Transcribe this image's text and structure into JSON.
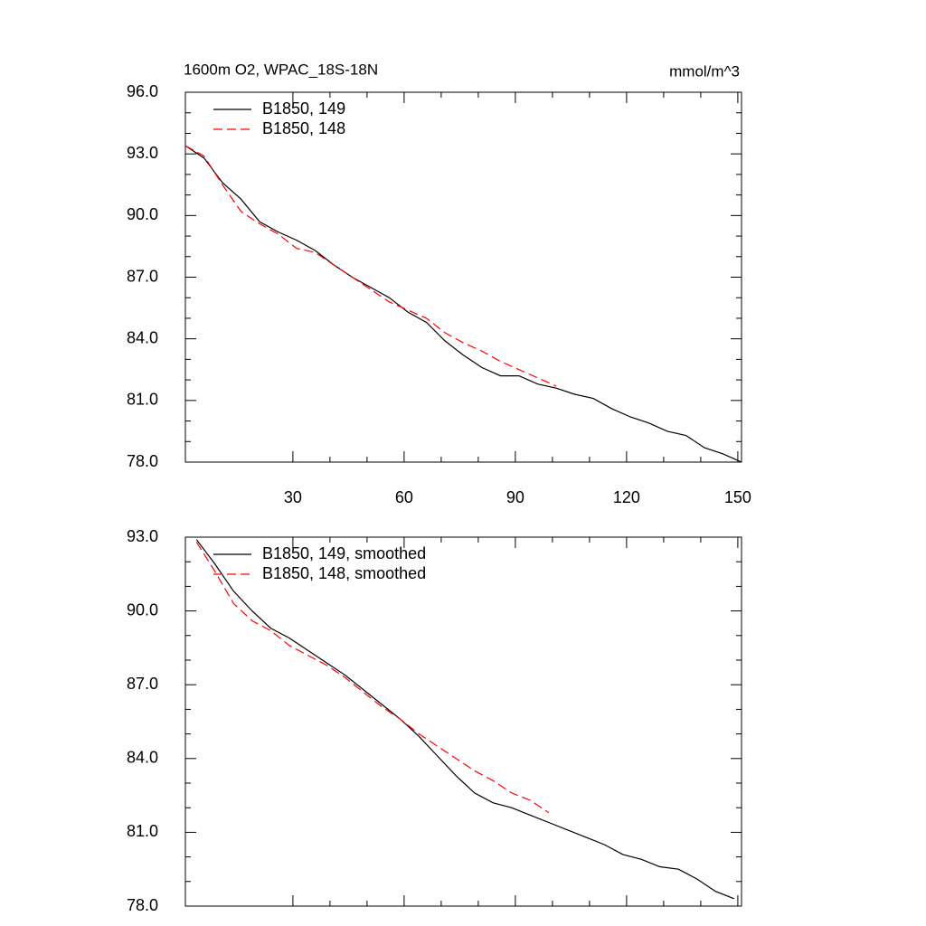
{
  "chart_data": [
    {
      "type": "line",
      "title": "1600m O2, WPAC_18S-18N",
      "units": "mmol/m^3",
      "x": [
        1,
        6,
        11,
        16,
        21,
        26,
        31,
        36,
        41,
        46,
        51,
        56,
        61,
        66,
        71,
        76,
        81,
        86,
        91,
        96,
        101,
        106,
        111,
        116,
        121,
        126,
        131,
        136,
        141,
        146,
        151
      ],
      "series": [
        {
          "name": "B1850, 149",
          "color": "#000000",
          "line_style": "solid",
          "values": [
            93.4,
            92.8,
            91.6,
            90.8,
            89.7,
            89.2,
            88.8,
            88.3,
            87.6,
            87.0,
            86.5,
            86.0,
            85.3,
            84.8,
            83.9,
            83.2,
            82.6,
            82.2,
            82.2,
            81.8,
            81.6,
            81.3,
            81.1,
            80.6,
            80.2,
            79.9,
            79.5,
            79.3,
            78.7,
            78.4,
            78.0
          ]
        },
        {
          "name": "B1850, 148",
          "color": "#ff0000",
          "line_style": "dashed",
          "values": [
            93.4,
            92.9,
            91.5,
            90.2,
            89.6,
            89.1,
            88.4,
            88.2,
            87.6,
            87.0,
            86.4,
            85.8,
            85.4,
            85.0,
            84.3,
            83.8,
            83.4,
            82.9,
            82.5,
            82.1,
            81.7,
            null,
            null,
            null,
            null,
            null,
            null,
            null,
            null,
            null,
            null
          ]
        }
      ],
      "xlim": [
        1,
        151
      ],
      "xticks": [
        30,
        60,
        90,
        120,
        150
      ],
      "xtick_labels": true,
      "ylim": [
        78,
        96
      ],
      "yticks": [
        {
          "value": 78,
          "label": "78.0"
        },
        {
          "value": 81,
          "label": "81.0"
        },
        {
          "value": 84,
          "label": "84.0"
        },
        {
          "value": 87,
          "label": "87.0"
        },
        {
          "value": 90,
          "label": "90.0"
        },
        {
          "value": 93,
          "label": "93.0"
        },
        {
          "value": 96,
          "label": "96.0"
        }
      ],
      "legend": "upper left"
    },
    {
      "type": "line",
      "x": [
        4,
        9,
        14,
        19,
        24,
        29,
        34,
        39,
        44,
        49,
        54,
        59,
        64,
        69,
        74,
        79,
        84,
        89,
        94,
        99,
        104,
        109,
        114,
        119,
        124,
        129,
        134,
        139,
        144,
        149
      ],
      "series": [
        {
          "name": "B1850, 149, smoothed",
          "color": "#000000",
          "line_style": "solid",
          "values": [
            92.9,
            91.9,
            90.8,
            90.0,
            89.3,
            88.9,
            88.4,
            87.9,
            87.4,
            86.8,
            86.2,
            85.6,
            84.9,
            84.1,
            83.3,
            82.6,
            82.2,
            82.0,
            81.7,
            81.4,
            81.1,
            80.8,
            80.5,
            80.1,
            79.9,
            79.6,
            79.5,
            79.1,
            78.6,
            78.3
          ]
        },
        {
          "name": "B1850, 148, smoothed",
          "color": "#ff0000",
          "line_style": "dashed",
          "values": [
            92.8,
            91.6,
            90.3,
            89.6,
            89.2,
            88.6,
            88.2,
            87.8,
            87.3,
            86.7,
            86.1,
            85.6,
            85.0,
            84.5,
            84.0,
            83.5,
            83.1,
            82.6,
            82.3,
            81.8,
            null,
            null,
            null,
            null,
            null,
            null,
            null,
            null,
            null,
            null
          ]
        }
      ],
      "xlim": [
        1,
        151
      ],
      "xticks": [
        30,
        60,
        90,
        120,
        150
      ],
      "xtick_labels": false,
      "ylim": [
        78,
        93
      ],
      "yticks": [
        {
          "value": 78,
          "label": "78.0"
        },
        {
          "value": 81,
          "label": "81.0"
        },
        {
          "value": 84,
          "label": "84.0"
        },
        {
          "value": 87,
          "label": "87.0"
        },
        {
          "value": 90,
          "label": "90.0"
        },
        {
          "value": 93,
          "label": "93.0"
        }
      ],
      "legend": "upper left"
    }
  ]
}
